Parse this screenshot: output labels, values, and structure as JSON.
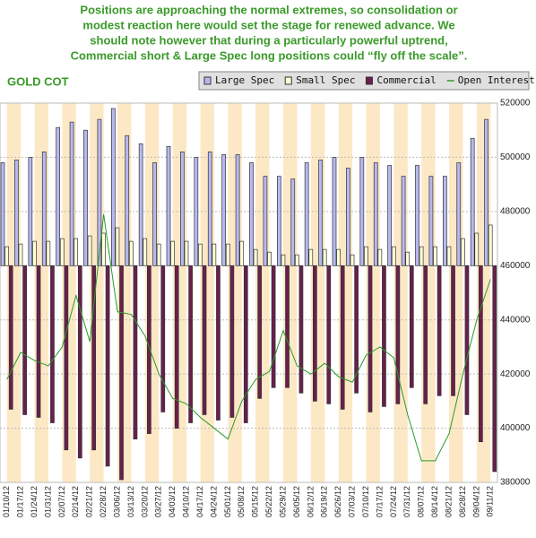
{
  "chart_data": {
    "type": "bar",
    "title": [
      "Positions are approaching the normal extremes, so consolidation or",
      "modest reaction here would set the stage for renewed advance. We",
      "should note however that during a particularly powerful uptrend,",
      "Commercial short & Large Spec long positions could “fly off the scale”."
    ],
    "subtitle": "GOLD COT",
    "categories": [
      "01/10/12",
      "01/17/12",
      "01/24/12",
      "01/31/12",
      "02/07/12",
      "02/14/12",
      "02/21/12",
      "02/28/12",
      "03/06/12",
      "03/13/12",
      "03/20/12",
      "03/27/12",
      "04/03/12",
      "04/10/12",
      "04/17/12",
      "04/24/12",
      "05/01/12",
      "05/08/12",
      "05/15/12",
      "05/22/12",
      "05/29/12",
      "06/05/12",
      "06/12/12",
      "06/19/12",
      "06/26/12",
      "07/03/12",
      "07/10/12",
      "07/17/12",
      "07/24/12",
      "07/31/12",
      "08/07/12",
      "08/14/12",
      "08/21/12",
      "08/28/12",
      "09/04/12",
      "09/11/12"
    ],
    "bar_baseline": 460000,
    "series": [
      {
        "name": "Large Spec",
        "color": "#b8b8f0",
        "values": [
          498000,
          499000,
          500000,
          502000,
          511000,
          513000,
          510000,
          514000,
          518000,
          508000,
          505000,
          498000,
          504000,
          502000,
          500000,
          502000,
          501000,
          501000,
          498000,
          493000,
          493000,
          492000,
          498000,
          499000,
          500000,
          496000,
          500000,
          498000,
          497000,
          493000,
          497000,
          493000,
          493000,
          498000,
          507000,
          514000
        ]
      },
      {
        "name": "Small Spec",
        "color": "#ffffd8",
        "values": [
          467000,
          468000,
          469000,
          469000,
          470000,
          470000,
          471000,
          472000,
          474000,
          469000,
          470000,
          468000,
          469000,
          469000,
          468000,
          468000,
          468000,
          469000,
          466000,
          465000,
          464000,
          464000,
          466000,
          466000,
          466000,
          464000,
          467000,
          466000,
          467000,
          465000,
          467000,
          467000,
          467000,
          470000,
          472000,
          475000
        ]
      },
      {
        "name": "Commercial",
        "color": "#6a1f4c",
        "values": [
          407000,
          405000,
          404000,
          402000,
          392000,
          389000,
          392000,
          386000,
          381000,
          396000,
          398000,
          406000,
          400000,
          402000,
          405000,
          403000,
          404000,
          402000,
          411000,
          415000,
          415000,
          413000,
          410000,
          409000,
          407000,
          413000,
          406000,
          408000,
          409000,
          415000,
          409000,
          412000,
          412000,
          405000,
          395000,
          384000
        ]
      },
      {
        "name": "Open Interest",
        "type": "line",
        "color": "#2a9a2a",
        "values": [
          418000,
          428000,
          425000,
          423000,
          430000,
          449000,
          432000,
          479000,
          443000,
          442000,
          434000,
          420000,
          411000,
          409000,
          404000,
          400000,
          396000,
          410000,
          418000,
          421000,
          436000,
          423000,
          420000,
          424000,
          419000,
          417000,
          427000,
          430000,
          426000,
          405000,
          388000,
          388000,
          398000,
          420000,
          440000,
          455000
        ]
      }
    ],
    "ylim": [
      380000,
      520000
    ],
    "yticks": [
      380000,
      400000,
      420000,
      440000,
      460000,
      480000,
      500000,
      520000
    ],
    "grid": true,
    "legend": "top-right"
  }
}
